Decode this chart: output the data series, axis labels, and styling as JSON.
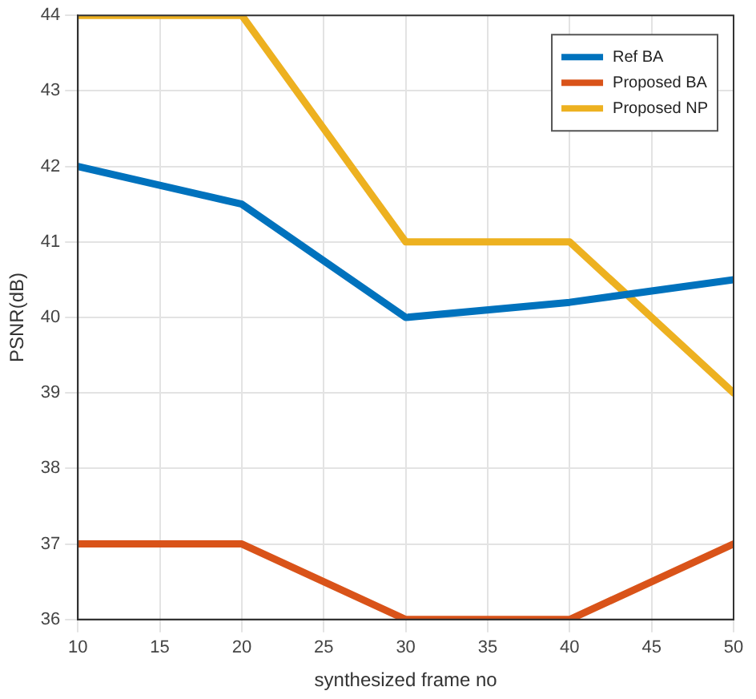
{
  "chart_data": {
    "type": "line",
    "xlabel": "synthesized frame no",
    "ylabel": "PSNR(dB)",
    "x": [
      10,
      20,
      30,
      40,
      50
    ],
    "series": [
      {
        "name": "Ref BA",
        "color": "#0072bd",
        "values": [
          42,
          41.5,
          40,
          40.2,
          40.5
        ]
      },
      {
        "name": "Proposed BA",
        "color": "#d95319",
        "values": [
          37,
          37,
          36,
          36,
          37
        ]
      },
      {
        "name": "Proposed NP",
        "color": "#edb120",
        "values": [
          44,
          44,
          41,
          41,
          39
        ]
      }
    ],
    "xlim": [
      10,
      50
    ],
    "xticks": [
      10,
      15,
      20,
      25,
      30,
      35,
      40,
      45,
      50
    ],
    "ylim": [
      36,
      44
    ],
    "yticks": [
      36,
      37,
      38,
      39,
      40,
      41,
      42,
      43,
      44
    ],
    "grid": true,
    "legend": "top right",
    "marker": "none",
    "line_style": "solid"
  }
}
